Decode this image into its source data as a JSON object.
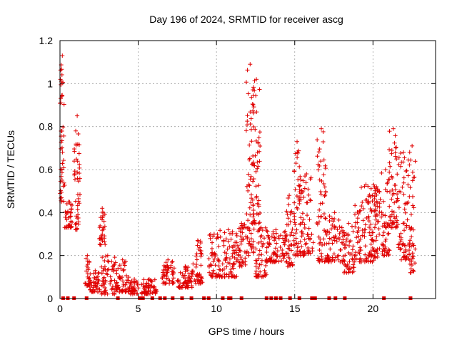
{
  "chart_data": {
    "type": "scatter",
    "title": "Day 196 of 2024, SRMTID for receiver ascg",
    "xlabel": "GPS time / hours",
    "ylabel": "SRMTID / TECUs",
    "xlim": [
      0,
      24
    ],
    "ylim": [
      0,
      1.2
    ],
    "xticks": [
      0,
      5,
      10,
      15,
      20
    ],
    "xtick_labels": [
      "0",
      "5",
      "10",
      "15",
      "20"
    ],
    "yticks": [
      0,
      0.2,
      0.4,
      0.6,
      0.8,
      1.0,
      1.2
    ],
    "ytick_labels": [
      "0",
      "0.2",
      "0.4",
      "0.6",
      "0.8",
      "1",
      "1.2"
    ],
    "grid": true,
    "legend": "none",
    "marker": "plus",
    "color": "#e00000",
    "series": [
      {
        "name": "SRMTID",
        "segments": [
          {
            "start": 0.0,
            "end": 0.3,
            "low": 0.45,
            "high": 1.13
          },
          {
            "start": 0.3,
            "end": 0.8,
            "low": 0.33,
            "high": 0.45
          },
          {
            "start": 0.9,
            "end": 1.3,
            "low": 0.32,
            "high": 0.85
          },
          {
            "start": 1.6,
            "end": 1.9,
            "low": 0.06,
            "high": 0.2
          },
          {
            "start": 1.9,
            "end": 2.6,
            "low": 0.03,
            "high": 0.13
          },
          {
            "start": 2.5,
            "end": 2.9,
            "low": 0.25,
            "high": 0.42
          },
          {
            "start": 2.6,
            "end": 3.5,
            "low": 0.02,
            "high": 0.2
          },
          {
            "start": 3.5,
            "end": 4.5,
            "low": 0.03,
            "high": 0.18
          },
          {
            "start": 4.5,
            "end": 5.0,
            "low": 0.02,
            "high": 0.09
          },
          {
            "start": 5.2,
            "end": 6.2,
            "low": 0.02,
            "high": 0.09
          },
          {
            "start": 6.5,
            "end": 7.3,
            "low": 0.07,
            "high": 0.18
          },
          {
            "start": 7.5,
            "end": 8.5,
            "low": 0.05,
            "high": 0.15
          },
          {
            "start": 8.5,
            "end": 9.1,
            "low": 0.07,
            "high": 0.27
          },
          {
            "start": 9.5,
            "end": 10.2,
            "low": 0.1,
            "high": 0.3
          },
          {
            "start": 10.2,
            "end": 11.3,
            "low": 0.1,
            "high": 0.32
          },
          {
            "start": 11.3,
            "end": 11.9,
            "low": 0.15,
            "high": 0.35
          },
          {
            "start": 11.9,
            "end": 12.4,
            "low": 0.2,
            "high": 1.09
          },
          {
            "start": 12.3,
            "end": 12.8,
            "low": 0.35,
            "high": 1.02
          },
          {
            "start": 12.5,
            "end": 13.2,
            "low": 0.1,
            "high": 0.33
          },
          {
            "start": 13.2,
            "end": 14.4,
            "low": 0.17,
            "high": 0.32
          },
          {
            "start": 14.4,
            "end": 14.9,
            "low": 0.15,
            "high": 0.48
          },
          {
            "start": 14.9,
            "end": 15.4,
            "low": 0.2,
            "high": 0.73
          },
          {
            "start": 15.3,
            "end": 16.2,
            "low": 0.2,
            "high": 0.58
          },
          {
            "start": 16.4,
            "end": 17.0,
            "low": 0.17,
            "high": 0.79
          },
          {
            "start": 17.0,
            "end": 18.1,
            "low": 0.17,
            "high": 0.4
          },
          {
            "start": 18.1,
            "end": 18.8,
            "low": 0.12,
            "high": 0.35
          },
          {
            "start": 18.8,
            "end": 20.3,
            "low": 0.17,
            "high": 0.53
          },
          {
            "start": 19.7,
            "end": 20.5,
            "low": 0.2,
            "high": 0.52
          },
          {
            "start": 20.5,
            "end": 21.1,
            "low": 0.2,
            "high": 0.6
          },
          {
            "start": 21.0,
            "end": 21.6,
            "low": 0.33,
            "high": 0.79
          },
          {
            "start": 21.6,
            "end": 22.3,
            "low": 0.18,
            "high": 0.68
          },
          {
            "start": 22.3,
            "end": 22.7,
            "low": 0.12,
            "high": 0.71
          }
        ],
        "zero_values_at_hours": [
          0.2,
          0.5,
          0.9,
          1.7,
          3.7,
          5.1,
          5.3,
          5.9,
          6.4,
          6.7,
          7.2,
          7.8,
          8.4,
          9.2,
          9.5,
          10.4,
          10.8,
          10.9,
          11.6,
          13.2,
          13.5,
          13.8,
          14.1,
          14.7,
          15.3,
          16.1,
          16.3,
          17.2,
          17.6,
          18.2,
          20.7,
          22.4
        ]
      }
    ]
  }
}
